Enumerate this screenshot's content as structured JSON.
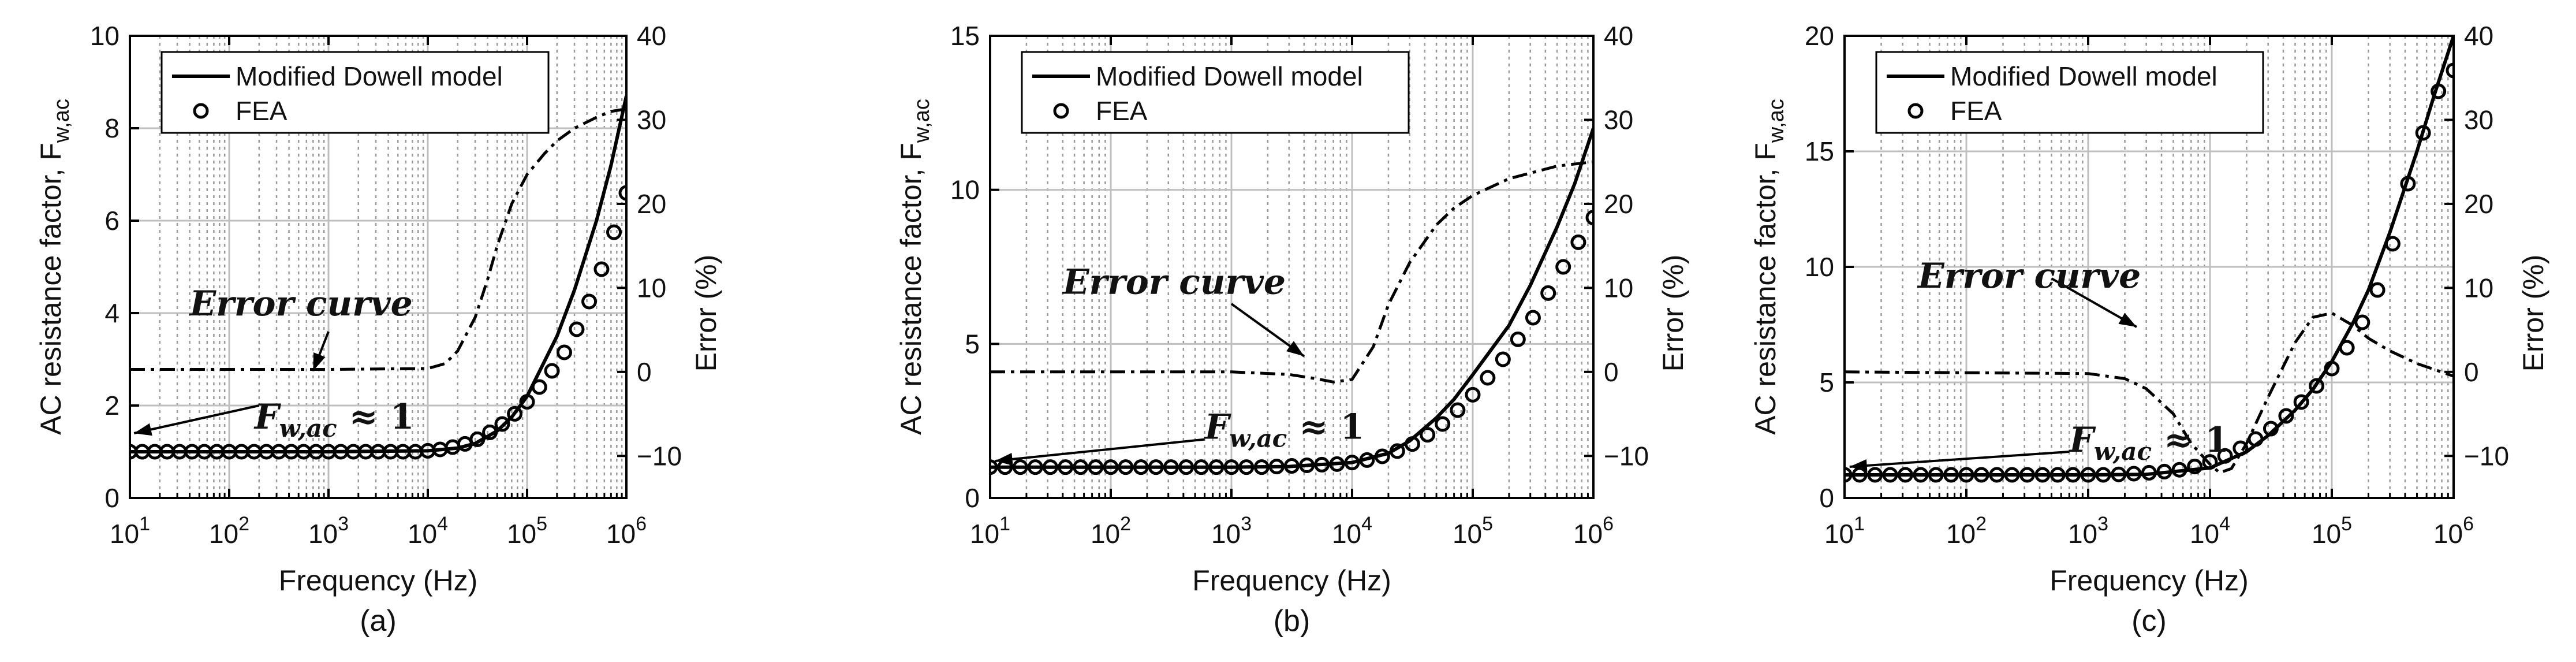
{
  "figure": {
    "colors": {
      "model_line": "#000000",
      "fea_marker": "#000000",
      "error_line": "#000000",
      "grid_major": "#bfbfbf",
      "grid_minor": "#9a9a9a",
      "background": "#ffffff"
    }
  },
  "chart_data": [
    {
      "type": "line",
      "panel_label": "(a)",
      "xlabel": "Frequency (Hz)",
      "ylabel": "AC resistance factor, F",
      "ylabel_subscript": "w,ac",
      "y2label": "Error (%)",
      "xscale": "log",
      "xlim": [
        10,
        1000000
      ],
      "x_tick_labels": [
        {
          "base": "10",
          "exp": "1"
        },
        {
          "base": "10",
          "exp": "2"
        },
        {
          "base": "10",
          "exp": "3"
        },
        {
          "base": "10",
          "exp": "4"
        },
        {
          "base": "10",
          "exp": "5"
        },
        {
          "base": "10",
          "exp": "6"
        }
      ],
      "ylim": [
        0,
        10
      ],
      "y_ticks": [
        0,
        2,
        4,
        6,
        8,
        10
      ],
      "y_tick_labels": [
        "0",
        "2",
        "4",
        "6",
        "8",
        "10"
      ],
      "y2lim": [
        -15,
        40
      ],
      "y2_ticks": [
        -10,
        0,
        10,
        20,
        30,
        40
      ],
      "y2_tick_labels": [
        "−10",
        "0",
        "10",
        "20",
        "30",
        "40"
      ],
      "grid": true,
      "legend": {
        "placement": "top-left",
        "entries": [
          "Modified Dowell model",
          "FEA"
        ]
      },
      "annotations": [
        {
          "text": "Error curve",
          "arrow_tail": [
            1000,
            3.6
          ],
          "arrow_head": [
            700,
            2.75
          ],
          "text_at": [
            40,
            4.2
          ]
        },
        {
          "text": "F",
          "subscript": "w,ac",
          "suffix": " ≈ 1",
          "arrow_tail": [
            200,
            2.0
          ],
          "arrow_head": [
            11,
            1.4
          ],
          "text_at": [
            180,
            1.75
          ]
        }
      ],
      "series": [
        {
          "name": "Modified Dowell model",
          "style": "solid",
          "axis": "left",
          "x": [
            10,
            1000,
            10000,
            20000,
            30000,
            50000,
            70000,
            100000,
            200000,
            300000,
            500000,
            700000,
            1000000
          ],
          "y": [
            1.0,
            1.0,
            1.02,
            1.08,
            1.18,
            1.45,
            1.75,
            2.2,
            3.5,
            4.5,
            6.0,
            7.2,
            8.7
          ]
        },
        {
          "name": "FEA",
          "style": "marker",
          "axis": "left",
          "x": [
            10,
            13.3,
            17.8,
            23.7,
            31.6,
            42.2,
            56.2,
            75,
            100,
            133,
            178,
            237,
            316,
            422,
            562,
            750,
            1000,
            1330,
            1780,
            2370,
            3160,
            4220,
            5620,
            7500,
            10000,
            13300,
            17800,
            23700,
            31600,
            42200,
            56200,
            75000,
            100000,
            133000,
            178000,
            237000,
            316000,
            422000,
            562000,
            750000,
            1000000
          ],
          "y": [
            1.0,
            1.0,
            1.0,
            1.0,
            1.0,
            1.0,
            1.0,
            1.0,
            1.0,
            1.0,
            1.0,
            1.0,
            1.0,
            1.0,
            1.0,
            1.0,
            1.0,
            1.0,
            1.0,
            1.0,
            1.0,
            1.0,
            1.0,
            1.0,
            1.02,
            1.05,
            1.1,
            1.17,
            1.27,
            1.42,
            1.6,
            1.82,
            2.08,
            2.4,
            2.75,
            3.15,
            3.65,
            4.25,
            4.95,
            5.75,
            6.6
          ]
        },
        {
          "name": "Error curve",
          "style": "dashdot",
          "axis": "right",
          "x": [
            10,
            1000,
            10000,
            15000,
            20000,
            30000,
            40000,
            50000,
            70000,
            100000,
            150000,
            200000,
            300000,
            500000,
            700000,
            1000000
          ],
          "y": [
            0.3,
            0.3,
            0.4,
            1.0,
            2.5,
            6.5,
            11.0,
            15.0,
            20.0,
            23.5,
            26.0,
            27.5,
            29.0,
            30.3,
            31.0,
            31.3
          ]
        }
      ]
    },
    {
      "type": "line",
      "panel_label": "(b)",
      "xlabel": "Frequency (Hz)",
      "ylabel": "AC resistance factor, F",
      "ylabel_subscript": "w,ac",
      "y2label": "Error (%)",
      "xscale": "log",
      "xlim": [
        10,
        1000000
      ],
      "x_tick_labels": [
        {
          "base": "10",
          "exp": "1"
        },
        {
          "base": "10",
          "exp": "2"
        },
        {
          "base": "10",
          "exp": "3"
        },
        {
          "base": "10",
          "exp": "4"
        },
        {
          "base": "10",
          "exp": "5"
        },
        {
          "base": "10",
          "exp": "6"
        }
      ],
      "ylim": [
        0,
        15
      ],
      "y_ticks": [
        0,
        5,
        10,
        15
      ],
      "y_tick_labels": [
        "0",
        "5",
        "10",
        "15"
      ],
      "y2lim": [
        -15,
        40
      ],
      "y2_ticks": [
        -10,
        0,
        10,
        20,
        30,
        40
      ],
      "y2_tick_labels": [
        "−10",
        "0",
        "10",
        "20",
        "30",
        "40"
      ],
      "grid": true,
      "legend": {
        "placement": "top-left",
        "entries": [
          "Modified Dowell model",
          "FEA"
        ]
      },
      "annotations": [
        {
          "text": "Error curve",
          "arrow_tail": [
            1000,
            6.3
          ],
          "arrow_head": [
            4000,
            4.6
          ],
          "text_at": [
            40,
            7.0
          ]
        },
        {
          "text": "F",
          "subscript": "w,ac",
          "suffix": " ≈ 1",
          "arrow_tail": [
            600,
            1.9
          ],
          "arrow_head": [
            11,
            1.2
          ],
          "text_at": [
            600,
            2.3
          ]
        }
      ],
      "series": [
        {
          "name": "Modified Dowell model",
          "style": "solid",
          "axis": "left",
          "x": [
            10,
            1000,
            3000,
            10000,
            20000,
            30000,
            50000,
            70000,
            100000,
            200000,
            300000,
            500000,
            700000,
            1000000
          ],
          "y": [
            1.0,
            1.0,
            1.02,
            1.15,
            1.45,
            1.85,
            2.6,
            3.2,
            4.0,
            5.6,
            6.9,
            8.8,
            10.2,
            12.0
          ]
        },
        {
          "name": "FEA",
          "style": "marker",
          "axis": "left",
          "x": [
            10,
            13.3,
            17.8,
            23.7,
            31.6,
            42.2,
            56.2,
            75,
            100,
            133,
            178,
            237,
            316,
            422,
            562,
            750,
            1000,
            1330,
            1780,
            2370,
            3160,
            4220,
            5620,
            7500,
            10000,
            13300,
            17800,
            23700,
            31600,
            42200,
            56200,
            75000,
            100000,
            133000,
            178000,
            237000,
            316000,
            422000,
            562000,
            750000,
            1000000
          ],
          "y": [
            1.0,
            1.0,
            1.0,
            1.0,
            1.0,
            1.0,
            1.0,
            1.0,
            1.0,
            1.0,
            1.0,
            1.0,
            1.0,
            1.0,
            1.0,
            1.0,
            1.0,
            1.0,
            1.0,
            1.02,
            1.04,
            1.06,
            1.08,
            1.1,
            1.15,
            1.23,
            1.35,
            1.52,
            1.75,
            2.05,
            2.4,
            2.85,
            3.35,
            3.9,
            4.5,
            5.15,
            5.85,
            6.65,
            7.5,
            8.3,
            9.1
          ]
        },
        {
          "name": "Error curve",
          "style": "dashdot",
          "axis": "right",
          "x": [
            10,
            1000,
            3000,
            5000,
            7000,
            10000,
            15000,
            20000,
            30000,
            50000,
            70000,
            100000,
            200000,
            500000,
            1000000
          ],
          "y": [
            0.0,
            0.0,
            -0.3,
            -0.8,
            -1.2,
            -0.9,
            3.0,
            8.0,
            13.0,
            17.5,
            19.5,
            21.0,
            23.0,
            24.5,
            25.0
          ]
        }
      ]
    },
    {
      "type": "line",
      "panel_label": "(c)",
      "xlabel": "Frequency (Hz)",
      "ylabel": "AC resistance factor, F",
      "ylabel_subscript": "w,ac",
      "y2label": "Error (%)",
      "xscale": "log",
      "xlim": [
        10,
        1000000
      ],
      "x_tick_labels": [
        {
          "base": "10",
          "exp": "1"
        },
        {
          "base": "10",
          "exp": "2"
        },
        {
          "base": "10",
          "exp": "3"
        },
        {
          "base": "10",
          "exp": "4"
        },
        {
          "base": "10",
          "exp": "5"
        },
        {
          "base": "10",
          "exp": "6"
        }
      ],
      "ylim": [
        0,
        20
      ],
      "y_ticks": [
        0,
        5,
        10,
        15,
        20
      ],
      "y_tick_labels": [
        "0",
        "5",
        "10",
        "15",
        "20"
      ],
      "y2lim": [
        -15,
        40
      ],
      "y2_ticks": [
        -10,
        0,
        10,
        20,
        30,
        40
      ],
      "y2_tick_labels": [
        "−10",
        "0",
        "10",
        "20",
        "30",
        "40"
      ],
      "grid": true,
      "legend": {
        "placement": "top-left",
        "entries": [
          "Modified Dowell model",
          "FEA"
        ]
      },
      "annotations": [
        {
          "text": "Error curve",
          "arrow_tail": [
            500,
            9.5
          ],
          "arrow_head": [
            2500,
            7.4
          ],
          "text_at": [
            40,
            9.6
          ]
        },
        {
          "text": "F",
          "subscript": "w,ac",
          "suffix": " ≈ 1",
          "arrow_tail": [
            700,
            2.0
          ],
          "arrow_head": [
            11,
            1.35
          ],
          "text_at": [
            700,
            2.5
          ]
        }
      ],
      "series": [
        {
          "name": "Modified Dowell model",
          "style": "solid",
          "axis": "left",
          "x": [
            10,
            1000,
            3000,
            10000,
            20000,
            30000,
            50000,
            70000,
            100000,
            150000,
            200000,
            300000,
            500000,
            700000,
            1000000
          ],
          "y": [
            1.0,
            1.0,
            1.02,
            1.3,
            2.0,
            2.7,
            3.8,
            4.7,
            5.9,
            7.6,
            9.0,
            11.5,
            15.0,
            17.5,
            20.0
          ]
        },
        {
          "name": "FEA",
          "style": "marker",
          "axis": "left",
          "x": [
            10,
            13.3,
            17.8,
            23.7,
            31.6,
            42.2,
            56.2,
            75,
            100,
            133,
            178,
            237,
            316,
            422,
            562,
            750,
            1000,
            1330,
            1780,
            2370,
            3160,
            4220,
            5620,
            7500,
            10000,
            13300,
            17800,
            23700,
            31600,
            42200,
            56200,
            75000,
            100000,
            133000,
            178000,
            237000,
            316000,
            422000,
            562000,
            750000,
            1000000
          ],
          "y": [
            1.0,
            1.0,
            1.0,
            1.0,
            1.0,
            1.0,
            1.0,
            1.0,
            1.0,
            1.0,
            1.0,
            1.0,
            1.0,
            1.0,
            1.0,
            1.0,
            1.0,
            1.0,
            1.02,
            1.05,
            1.09,
            1.14,
            1.22,
            1.36,
            1.56,
            1.82,
            2.15,
            2.55,
            3.0,
            3.55,
            4.15,
            4.85,
            5.6,
            6.5,
            7.6,
            9.0,
            11.0,
            13.6,
            15.8,
            17.6,
            18.5
          ]
        },
        {
          "name": "Error curve",
          "style": "dashdot",
          "axis": "right",
          "x": [
            10,
            1000,
            2000,
            3000,
            5000,
            7000,
            10000,
            12000,
            15000,
            20000,
            30000,
            50000,
            70000,
            100000,
            150000,
            200000,
            300000,
            500000,
            1000000
          ],
          "y": [
            0.0,
            -0.2,
            -0.8,
            -2.0,
            -5.0,
            -8.5,
            -11.0,
            -12.0,
            -11.5,
            -8.5,
            -3.0,
            3.5,
            6.5,
            7.0,
            5.5,
            4.0,
            2.5,
            1.0,
            -0.5
          ]
        }
      ]
    }
  ]
}
